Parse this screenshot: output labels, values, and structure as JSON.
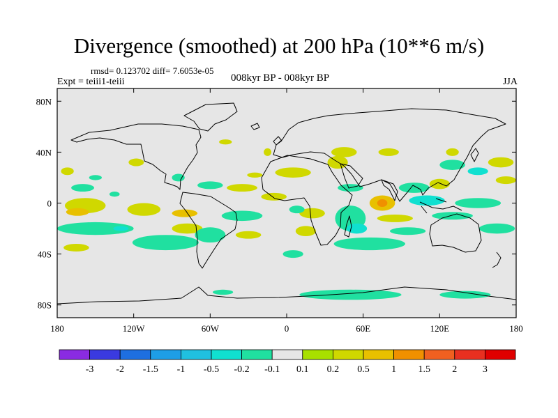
{
  "title": "Divergence (smoothed) at 200 hPa (10**6 m/s)",
  "stats": "rmsd= 0.123702 diff= 7.6053e-05",
  "experiment": "Expt = teiii1-teiii",
  "subtitle": "008kyr BP - 008kyr BP",
  "season": "JJA",
  "map": {
    "projection": "cylindrical equidistant",
    "lon_range": [
      -180,
      180
    ],
    "lat_range": [
      -90,
      90
    ],
    "land_fill": "#e6e6e6",
    "coastlines": true,
    "lon_ticks": [
      {
        "value": -180,
        "label": "180"
      },
      {
        "value": -120,
        "label": "120W"
      },
      {
        "value": -60,
        "label": "60W"
      },
      {
        "value": 0,
        "label": "0"
      },
      {
        "value": 60,
        "label": "60E"
      },
      {
        "value": 120,
        "label": "120E"
      },
      {
        "value": 180,
        "label": "180"
      }
    ],
    "lat_ticks": [
      {
        "value": 80,
        "label": "80N"
      },
      {
        "value": 40,
        "label": "40N"
      },
      {
        "value": 0,
        "label": "0"
      },
      {
        "value": -40,
        "label": "40S"
      },
      {
        "value": -80,
        "label": "80S"
      }
    ]
  },
  "colorbar": {
    "colors": [
      "#8a2be2",
      "#3a3ae0",
      "#1e6fe0",
      "#1e9ee6",
      "#20c0e0",
      "#10e0d0",
      "#20e0a0",
      "#e6e6e6",
      "#a8e000",
      "#d0d800",
      "#e8c000",
      "#f09000",
      "#f06020",
      "#e83020",
      "#e00000"
    ],
    "labels": [
      "-3",
      "-2",
      "-1.5",
      "-1",
      "-0.5",
      "-0.2",
      "-0.1",
      "0.1",
      "0.2",
      "0.5",
      "1",
      "1.5",
      "2",
      "3"
    ]
  },
  "anomaly_regions": [
    {
      "lon": -172,
      "lat": 25,
      "rx": 5,
      "ry": 3,
      "level": 0.2
    },
    {
      "lon": -160,
      "lat": 12,
      "rx": 9,
      "ry": 3,
      "level": -0.2
    },
    {
      "lon": -158,
      "lat": -2,
      "rx": 16,
      "ry": 6,
      "level": 0.2
    },
    {
      "lon": -164,
      "lat": -7,
      "rx": 9,
      "ry": 3,
      "level": 0.5
    },
    {
      "lon": -150,
      "lat": -20,
      "rx": 30,
      "ry": 5,
      "level": -0.2
    },
    {
      "lon": -130,
      "lat": -20,
      "rx": 6,
      "ry": 2,
      "level": -0.5
    },
    {
      "lon": -165,
      "lat": -35,
      "rx": 10,
      "ry": 3,
      "level": 0.2
    },
    {
      "lon": -112,
      "lat": -5,
      "rx": 13,
      "ry": 5,
      "level": 0.2
    },
    {
      "lon": -135,
      "lat": 7,
      "rx": 4,
      "ry": 2,
      "level": -0.2
    },
    {
      "lon": -150,
      "lat": 20,
      "rx": 5,
      "ry": 2,
      "level": -0.2
    },
    {
      "lon": -118,
      "lat": 32,
      "rx": 6,
      "ry": 3,
      "level": 0.2
    },
    {
      "lon": -95,
      "lat": -31,
      "rx": 26,
      "ry": 6,
      "level": -0.2
    },
    {
      "lon": -78,
      "lat": -20,
      "rx": 12,
      "ry": 4,
      "level": 0.2
    },
    {
      "lon": -80,
      "lat": -8,
      "rx": 10,
      "ry": 3,
      "level": 0.5
    },
    {
      "lon": -60,
      "lat": -25,
      "rx": 12,
      "ry": 6,
      "level": -0.2
    },
    {
      "lon": -35,
      "lat": -10,
      "rx": 16,
      "ry": 4,
      "level": -0.2
    },
    {
      "lon": -30,
      "lat": -25,
      "rx": 10,
      "ry": 3,
      "level": 0.2
    },
    {
      "lon": -85,
      "lat": 20,
      "rx": 5,
      "ry": 3,
      "level": -0.2
    },
    {
      "lon": -60,
      "lat": 14,
      "rx": 10,
      "ry": 3,
      "level": -0.2
    },
    {
      "lon": -35,
      "lat": 12,
      "rx": 12,
      "ry": 3,
      "level": 0.2
    },
    {
      "lon": -25,
      "lat": 22,
      "rx": 6,
      "ry": 2,
      "level": 0.2
    },
    {
      "lon": -48,
      "lat": 48,
      "rx": 5,
      "ry": 2,
      "level": 0.2
    },
    {
      "lon": -15,
      "lat": 40,
      "rx": 3,
      "ry": 3,
      "level": 0.2
    },
    {
      "lon": -10,
      "lat": 5,
      "rx": 10,
      "ry": 3,
      "level": 0.2
    },
    {
      "lon": 20,
      "lat": -8,
      "rx": 10,
      "ry": 4,
      "level": 0.2
    },
    {
      "lon": 8,
      "lat": -5,
      "rx": 6,
      "ry": 3,
      "level": -0.2
    },
    {
      "lon": 15,
      "lat": -22,
      "rx": 8,
      "ry": 4,
      "level": 0.2
    },
    {
      "lon": 5,
      "lat": -40,
      "rx": 8,
      "ry": 3,
      "level": -0.2
    },
    {
      "lon": 5,
      "lat": 24,
      "rx": 14,
      "ry": 4,
      "level": 0.2
    },
    {
      "lon": 40,
      "lat": 32,
      "rx": 8,
      "ry": 5,
      "level": 0.2
    },
    {
      "lon": 45,
      "lat": 40,
      "rx": 10,
      "ry": 4,
      "level": 0.2
    },
    {
      "lon": 80,
      "lat": 40,
      "rx": 8,
      "ry": 3,
      "level": 0.2
    },
    {
      "lon": 50,
      "lat": 12,
      "rx": 10,
      "ry": 3,
      "level": -0.2
    },
    {
      "lon": 50,
      "lat": -12,
      "rx": 12,
      "ry": 10,
      "level": -0.2
    },
    {
      "lon": 55,
      "lat": -20,
      "rx": 8,
      "ry": 4,
      "level": -0.5
    },
    {
      "lon": 65,
      "lat": -32,
      "rx": 28,
      "ry": 5,
      "level": -0.2
    },
    {
      "lon": 75,
      "lat": 0,
      "rx": 10,
      "ry": 6,
      "level": 0.5
    },
    {
      "lon": 75,
      "lat": 0,
      "rx": 4,
      "ry": 3,
      "level": 1
    },
    {
      "lon": 85,
      "lat": -12,
      "rx": 14,
      "ry": 3,
      "level": 0.2
    },
    {
      "lon": 95,
      "lat": -22,
      "rx": 14,
      "ry": 3,
      "level": -0.2
    },
    {
      "lon": 100,
      "lat": 12,
      "rx": 12,
      "ry": 4,
      "level": -0.2
    },
    {
      "lon": 110,
      "lat": 2,
      "rx": 14,
      "ry": 4,
      "level": -0.5
    },
    {
      "lon": 120,
      "lat": 15,
      "rx": 8,
      "ry": 4,
      "level": 0.2
    },
    {
      "lon": 130,
      "lat": -10,
      "rx": 16,
      "ry": 3,
      "level": -0.2
    },
    {
      "lon": 130,
      "lat": 30,
      "rx": 10,
      "ry": 4,
      "level": -0.2
    },
    {
      "lon": 130,
      "lat": 40,
      "rx": 5,
      "ry": 3,
      "level": 0.2
    },
    {
      "lon": 150,
      "lat": 0,
      "rx": 18,
      "ry": 4,
      "level": -0.2
    },
    {
      "lon": 165,
      "lat": -20,
      "rx": 14,
      "ry": 4,
      "level": -0.2
    },
    {
      "lon": 168,
      "lat": 32,
      "rx": 10,
      "ry": 4,
      "level": 0.2
    },
    {
      "lon": 172,
      "lat": 18,
      "rx": 8,
      "ry": 3,
      "level": 0.2
    },
    {
      "lon": 150,
      "lat": 25,
      "rx": 8,
      "ry": 3,
      "level": -0.5
    },
    {
      "lon": -50,
      "lat": -70,
      "rx": 8,
      "ry": 2,
      "level": -0.2
    },
    {
      "lon": 50,
      "lat": -72,
      "rx": 40,
      "ry": 4,
      "level": -0.2
    },
    {
      "lon": 140,
      "lat": -72,
      "rx": 20,
      "ry": 3,
      "level": -0.2
    }
  ]
}
